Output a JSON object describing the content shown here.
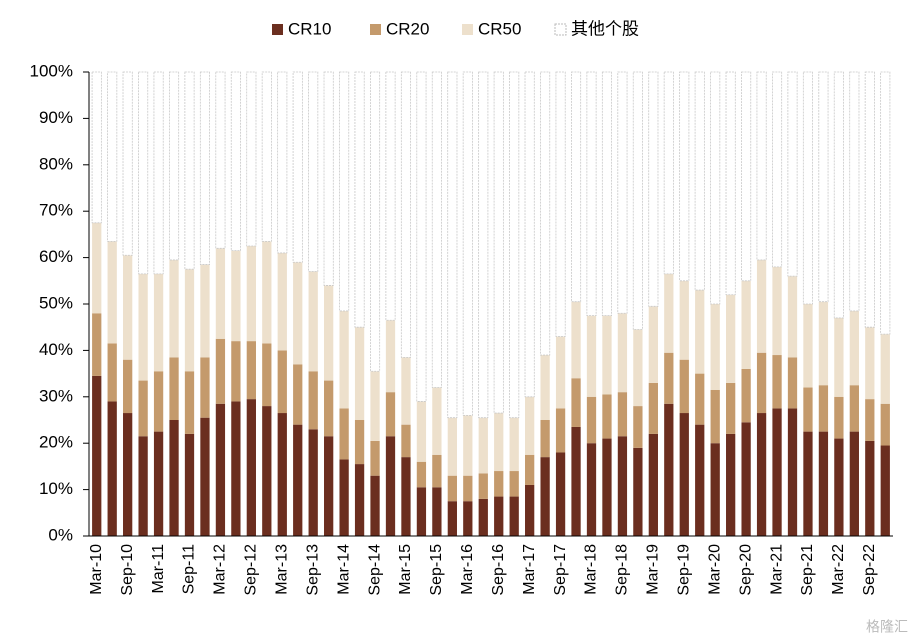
{
  "chart_data": {
    "type": "stacked_bar",
    "categories": [
      "Mar-10",
      null,
      "Sep-10",
      null,
      "Mar-11",
      null,
      "Sep-11",
      null,
      "Mar-12",
      null,
      "Sep-12",
      null,
      "Mar-13",
      null,
      "Sep-13",
      null,
      "Mar-14",
      null,
      "Sep-14",
      null,
      "Mar-15",
      null,
      "Sep-15",
      null,
      "Mar-16",
      null,
      "Sep-16",
      null,
      "Mar-17",
      null,
      "Sep-17",
      null,
      "Mar-18",
      null,
      "Sep-18",
      null,
      "Mar-19",
      null,
      "Sep-19",
      null,
      "Mar-20",
      null,
      "Sep-20",
      null,
      "Mar-21",
      null,
      "Sep-21",
      null,
      "Mar-22",
      null,
      "Sep-22",
      null
    ],
    "series": [
      {
        "name": "CR10",
        "color": "#6b2e1f",
        "values": [
          34.5,
          29,
          26.5,
          21.5,
          22.5,
          25,
          22,
          25.5,
          28.5,
          29,
          29.5,
          28,
          26.5,
          24,
          23,
          21.5,
          16.5,
          15.5,
          13,
          21.5,
          17,
          10.5,
          10.5,
          7.5,
          7.5,
          8,
          8.5,
          8.5,
          11,
          17,
          18,
          23.5,
          20,
          21,
          21.5,
          19,
          22,
          28.5,
          26.5,
          24,
          20,
          22,
          24.5,
          26.5,
          27.5,
          27.5,
          22.5,
          22.5,
          21,
          22.5,
          20.5,
          19.5
        ]
      },
      {
        "name": "CR20",
        "color": "#c49a6c",
        "values": [
          13.5,
          12.5,
          11.5,
          12,
          13,
          13.5,
          13.5,
          13,
          14,
          13,
          12.5,
          13.5,
          13.5,
          13,
          12.5,
          12,
          11,
          9.5,
          7.5,
          9.5,
          7,
          5.5,
          7,
          5.5,
          5.5,
          5.5,
          5.5,
          5.5,
          6.5,
          8,
          9.5,
          10.5,
          10,
          9.5,
          9.5,
          9,
          11,
          11,
          11.5,
          11,
          11.5,
          11,
          11.5,
          13,
          11.5,
          11,
          9.5,
          10,
          9,
          10,
          9,
          9
        ]
      },
      {
        "name": "CR50",
        "color": "#ede0cc",
        "values": [
          19.5,
          22,
          22.5,
          23,
          21,
          21,
          22,
          20,
          19.5,
          19.5,
          20.5,
          22,
          21,
          22,
          21.5,
          20.5,
          21,
          20,
          15,
          15.5,
          14.5,
          13,
          14.5,
          12.5,
          13,
          12,
          12.5,
          11.5,
          12.5,
          14,
          15.5,
          16.5,
          17.5,
          17,
          17,
          16.5,
          16.5,
          17,
          17,
          18,
          18.5,
          19,
          19,
          20,
          19,
          17.5,
          18,
          18,
          17,
          16,
          15.5,
          15
        ]
      },
      {
        "name": "其他个股",
        "color": "#ffffff",
        "values": [
          32.5,
          36.5,
          39.5,
          43.5,
          43.5,
          40.5,
          42.5,
          41.5,
          38,
          38.5,
          37.5,
          36.5,
          39,
          41,
          43,
          46,
          51.5,
          55,
          64.5,
          53.5,
          61.5,
          71,
          68,
          74.5,
          74,
          74.5,
          73.5,
          74.5,
          70,
          61,
          57,
          49.5,
          52.5,
          52.5,
          52,
          55.5,
          50.5,
          43.5,
          45,
          47,
          50,
          48,
          45,
          40.5,
          42,
          44,
          50,
          49.5,
          53,
          51.5,
          55,
          56.5
        ]
      }
    ],
    "ylim": [
      0,
      100
    ],
    "yticks": [
      {
        "value": 0,
        "label": "0%"
      },
      {
        "value": 10,
        "label": "10%"
      },
      {
        "value": 20,
        "label": "20%"
      },
      {
        "value": 30,
        "label": "30%"
      },
      {
        "value": 40,
        "label": "40%"
      },
      {
        "value": 50,
        "label": "50%"
      },
      {
        "value": 60,
        "label": "60%"
      },
      {
        "value": 70,
        "label": "70%"
      },
      {
        "value": 80,
        "label": "80%"
      },
      {
        "value": 90,
        "label": "90%"
      },
      {
        "value": 100,
        "label": "100%"
      }
    ],
    "legend": "top",
    "watermark": "格隆汇"
  }
}
